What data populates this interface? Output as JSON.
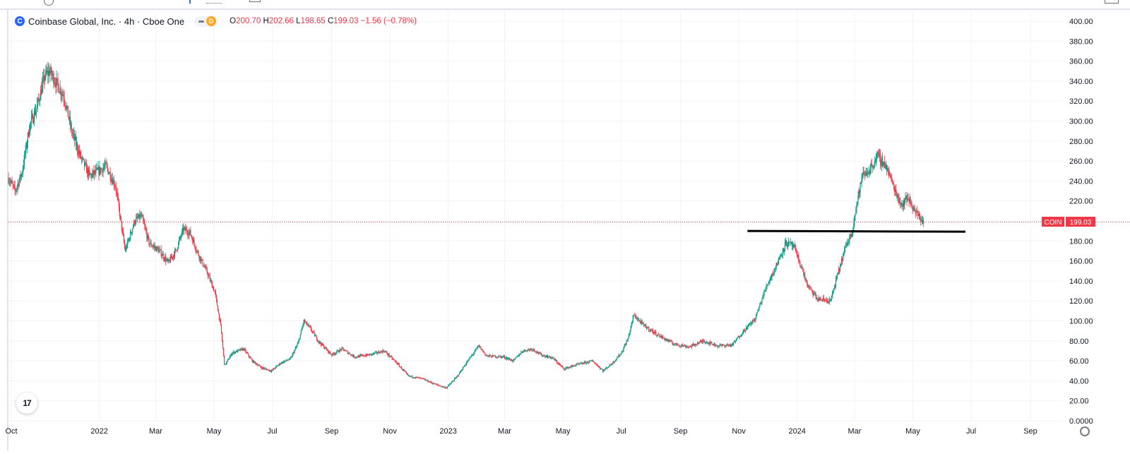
{
  "legend": {
    "logo_letter": "C",
    "title": "Coinbase Global, Inc. · 4h · Cboe One",
    "badge_letter": "D",
    "o_label": "O",
    "o_value": "200.70",
    "h_label": "H",
    "h_value": "202.66",
    "l_label": "L",
    "l_value": "198.65",
    "c_label": "C",
    "c_value": "199.03",
    "change": "−1.56 (−0.78%)"
  },
  "tv_logo": "17",
  "icons": {
    "settings": "gear-icon",
    "logo": "tradingview-logo-icon",
    "brand": "coinbase-logo-icon"
  },
  "colors": {
    "up": "#089981",
    "down": "#f23645",
    "grid": "#f0f3fa",
    "line": "#000000",
    "accent": "#2962ff"
  },
  "chart_data": {
    "type": "candlestick",
    "title": "Coinbase Global, Inc. · 4h · Cboe One",
    "symbol": "COIN",
    "last_price": 199.03,
    "y_axis": {
      "ylim": [
        0,
        400
      ],
      "ticks": [
        "0.0000",
        "20.00",
        "40.00",
        "60.00",
        "80.00",
        "100.00",
        "120.00",
        "140.00",
        "160.00",
        "180.00",
        "200.00",
        "220.00",
        "240.00",
        "260.00",
        "280.00",
        "300.00",
        "320.00",
        "340.00",
        "360.00",
        "380.00",
        "400.00"
      ]
    },
    "x_axis": {
      "range": [
        "2021-09-28",
        "2024-10-05"
      ],
      "ticks": [
        {
          "label": "Oct",
          "date": "2021-10-01"
        },
        {
          "label": "2022",
          "date": "2022-01-01"
        },
        {
          "label": "Mar",
          "date": "2022-03-01"
        },
        {
          "label": "May",
          "date": "2022-05-01"
        },
        {
          "label": "Jul",
          "date": "2022-07-01"
        },
        {
          "label": "Sep",
          "date": "2022-09-01"
        },
        {
          "label": "Nov",
          "date": "2022-11-01"
        },
        {
          "label": "2023",
          "date": "2023-01-01"
        },
        {
          "label": "Mar",
          "date": "2023-03-01"
        },
        {
          "label": "May",
          "date": "2023-05-01"
        },
        {
          "label": "Jul",
          "date": "2023-07-01"
        },
        {
          "label": "Sep",
          "date": "2023-09-01"
        },
        {
          "label": "Nov",
          "date": "2023-11-01"
        },
        {
          "label": "2024",
          "date": "2024-01-01"
        },
        {
          "label": "Mar",
          "date": "2024-03-01"
        },
        {
          "label": "May",
          "date": "2024-05-01"
        },
        {
          "label": "Jul",
          "date": "2024-07-01"
        },
        {
          "label": "Sep",
          "date": "2024-09-01"
        }
      ]
    },
    "price_path": [
      [
        "2021-09-28",
        243
      ],
      [
        "2021-10-05",
        230
      ],
      [
        "2021-10-12",
        248
      ],
      [
        "2021-10-20",
        295
      ],
      [
        "2021-10-28",
        315
      ],
      [
        "2021-11-05",
        345
      ],
      [
        "2021-11-10",
        350
      ],
      [
        "2021-11-16",
        340
      ],
      [
        "2021-11-25",
        325
      ],
      [
        "2021-12-03",
        290
      ],
      [
        "2021-12-12",
        265
      ],
      [
        "2021-12-22",
        245
      ],
      [
        "2021-12-31",
        250
      ],
      [
        "2022-01-08",
        255
      ],
      [
        "2022-01-18",
        235
      ],
      [
        "2022-01-28",
        170
      ],
      [
        "2022-02-07",
        200
      ],
      [
        "2022-02-14",
        205
      ],
      [
        "2022-02-22",
        178
      ],
      [
        "2022-03-05",
        170
      ],
      [
        "2022-03-14",
        158
      ],
      [
        "2022-03-22",
        170
      ],
      [
        "2022-03-30",
        192
      ],
      [
        "2022-04-06",
        188
      ],
      [
        "2022-04-14",
        168
      ],
      [
        "2022-04-24",
        148
      ],
      [
        "2022-05-02",
        128
      ],
      [
        "2022-05-08",
        95
      ],
      [
        "2022-05-12",
        55
      ],
      [
        "2022-05-20",
        68
      ],
      [
        "2022-06-01",
        72
      ],
      [
        "2022-06-10",
        60
      ],
      [
        "2022-06-20",
        53
      ],
      [
        "2022-06-30",
        50
      ],
      [
        "2022-07-10",
        58
      ],
      [
        "2022-07-20",
        62
      ],
      [
        "2022-07-28",
        78
      ],
      [
        "2022-08-03",
        100
      ],
      [
        "2022-08-10",
        92
      ],
      [
        "2022-08-18",
        80
      ],
      [
        "2022-09-01",
        66
      ],
      [
        "2022-09-12",
        72
      ],
      [
        "2022-09-25",
        64
      ],
      [
        "2022-10-10",
        66
      ],
      [
        "2022-10-26",
        70
      ],
      [
        "2022-11-08",
        58
      ],
      [
        "2022-11-20",
        45
      ],
      [
        "2022-12-05",
        42
      ],
      [
        "2022-12-20",
        36
      ],
      [
        "2022-12-30",
        33
      ],
      [
        "2023-01-10",
        44
      ],
      [
        "2023-01-20",
        58
      ],
      [
        "2023-02-02",
        75
      ],
      [
        "2023-02-10",
        65
      ],
      [
        "2023-02-28",
        64
      ],
      [
        "2023-03-10",
        60
      ],
      [
        "2023-03-20",
        70
      ],
      [
        "2023-03-30",
        72
      ],
      [
        "2023-04-08",
        66
      ],
      [
        "2023-04-20",
        63
      ],
      [
        "2023-05-02",
        52
      ],
      [
        "2023-05-15",
        56
      ],
      [
        "2023-06-01",
        60
      ],
      [
        "2023-06-12",
        50
      ],
      [
        "2023-06-22",
        58
      ],
      [
        "2023-07-01",
        68
      ],
      [
        "2023-07-08",
        82
      ],
      [
        "2023-07-14",
        106
      ],
      [
        "2023-07-25",
        95
      ],
      [
        "2023-08-10",
        85
      ],
      [
        "2023-08-25",
        77
      ],
      [
        "2023-09-10",
        74
      ],
      [
        "2023-09-25",
        80
      ],
      [
        "2023-10-10",
        75
      ],
      [
        "2023-10-25",
        76
      ],
      [
        "2023-11-06",
        90
      ],
      [
        "2023-11-18",
        102
      ],
      [
        "2023-11-30",
        135
      ],
      [
        "2023-12-10",
        155
      ],
      [
        "2023-12-20",
        178
      ],
      [
        "2023-12-28",
        175
      ],
      [
        "2024-01-05",
        155
      ],
      [
        "2024-01-12",
        135
      ],
      [
        "2024-01-22",
        122
      ],
      [
        "2024-02-05",
        120
      ],
      [
        "2024-02-12",
        145
      ],
      [
        "2024-02-20",
        172
      ],
      [
        "2024-02-27",
        188
      ],
      [
        "2024-03-02",
        210
      ],
      [
        "2024-03-09",
        245
      ],
      [
        "2024-03-16",
        250
      ],
      [
        "2024-03-25",
        265
      ],
      [
        "2024-04-03",
        255
      ],
      [
        "2024-04-12",
        232
      ],
      [
        "2024-04-19",
        216
      ],
      [
        "2024-04-26",
        224
      ],
      [
        "2024-05-03",
        210
      ],
      [
        "2024-05-08",
        204
      ],
      [
        "2024-05-12",
        199
      ]
    ],
    "horizontal_line": {
      "price": 190,
      "from": "2023-11-10",
      "to": "2024-06-25"
    },
    "last_price_line": {
      "price": 199.03,
      "style": "dotted"
    },
    "grid": true
  }
}
